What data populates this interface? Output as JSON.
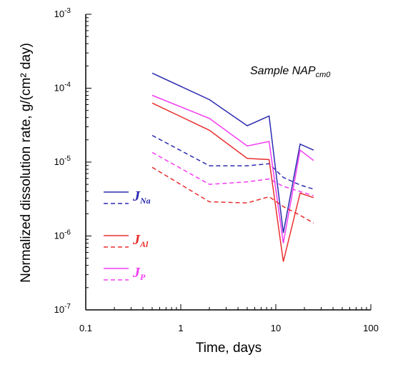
{
  "chart_data": {
    "type": "line",
    "xscale": "log",
    "yscale": "log",
    "xlim": [
      0.1,
      100
    ],
    "ylim": [
      1e-07,
      0.001
    ],
    "xlabel": "Time, days",
    "ylabel": "Normalized dissolution rate, g/(cm² day)",
    "annotation": {
      "prefix": "Sample NAP",
      "sub": "cm0"
    },
    "xticks": [
      {
        "value": 0.1,
        "label": "0.1"
      },
      {
        "value": 1,
        "label": "1"
      },
      {
        "value": 10,
        "label": "10"
      },
      {
        "value": 100,
        "label": "100"
      }
    ],
    "yticks": [
      {
        "value": 1e-07,
        "base": "10",
        "exp": "-7"
      },
      {
        "value": 1e-06,
        "base": "10",
        "exp": "-6"
      },
      {
        "value": 1e-05,
        "base": "10",
        "exp": "-5"
      },
      {
        "value": 0.0001,
        "base": "10",
        "exp": "-4"
      },
      {
        "value": 0.001,
        "base": "10",
        "exp": "-3"
      }
    ],
    "legend_position": "left",
    "legend": [
      {
        "main": "J",
        "sub": "Na",
        "color": "#2b2bb0"
      },
      {
        "main": "J",
        "sub": "Al",
        "color": "#e8302f"
      },
      {
        "main": "J",
        "sub": "P",
        "color": "#f23cf2"
      }
    ],
    "series": [
      {
        "element": "Na",
        "style": "solid",
        "color": "#2b2bb0",
        "points": [
          [
            0.5,
            0.00016
          ],
          [
            2,
            7e-05
          ],
          [
            5,
            3.1e-05
          ],
          [
            8.5,
            4.2e-05
          ],
          [
            12,
            1.1e-06
          ],
          [
            18,
            1.75e-05
          ],
          [
            25,
            1.45e-05
          ]
        ]
      },
      {
        "element": "Na",
        "style": "dashed",
        "color": "#2b2bb0",
        "points": [
          [
            0.5,
            2.3e-05
          ],
          [
            2,
            8.9e-06
          ],
          [
            5,
            8.9e-06
          ],
          [
            8.5,
            9.5e-06
          ],
          [
            12,
            6.2e-06
          ],
          [
            18,
            4.9e-06
          ],
          [
            25,
            4.3e-06
          ]
        ]
      },
      {
        "element": "P",
        "style": "solid",
        "color": "#f23cf2",
        "points": [
          [
            0.5,
            8e-05
          ],
          [
            2,
            3.9e-05
          ],
          [
            5,
            1.65e-05
          ],
          [
            8.5,
            1.9e-05
          ],
          [
            12,
            8e-07
          ],
          [
            18,
            1.45e-05
          ],
          [
            25,
            1.05e-05
          ]
        ]
      },
      {
        "element": "P",
        "style": "dashed",
        "color": "#f23cf2",
        "points": [
          [
            0.5,
            1.35e-05
          ],
          [
            2,
            5e-06
          ],
          [
            5,
            5.4e-06
          ],
          [
            8.5,
            5.9e-06
          ],
          [
            12,
            4.7e-06
          ],
          [
            18,
            4e-06
          ],
          [
            25,
            3.5e-06
          ]
        ]
      },
      {
        "element": "Al",
        "style": "solid",
        "color": "#e8302f",
        "points": [
          [
            0.5,
            6.3e-05
          ],
          [
            2,
            2.7e-05
          ],
          [
            5,
            1.12e-05
          ],
          [
            8.5,
            1.08e-05
          ],
          [
            12,
            4.5e-07
          ],
          [
            18,
            3.8e-06
          ],
          [
            25,
            3.3e-06
          ]
        ]
      },
      {
        "element": "Al",
        "style": "dashed",
        "color": "#e8302f",
        "points": [
          [
            0.5,
            8.5e-06
          ],
          [
            2,
            2.9e-06
          ],
          [
            5,
            2.8e-06
          ],
          [
            8.5,
            3.4e-06
          ],
          [
            12,
            2.5e-06
          ],
          [
            18,
            1.9e-06
          ],
          [
            25,
            1.5e-06
          ]
        ]
      }
    ]
  }
}
